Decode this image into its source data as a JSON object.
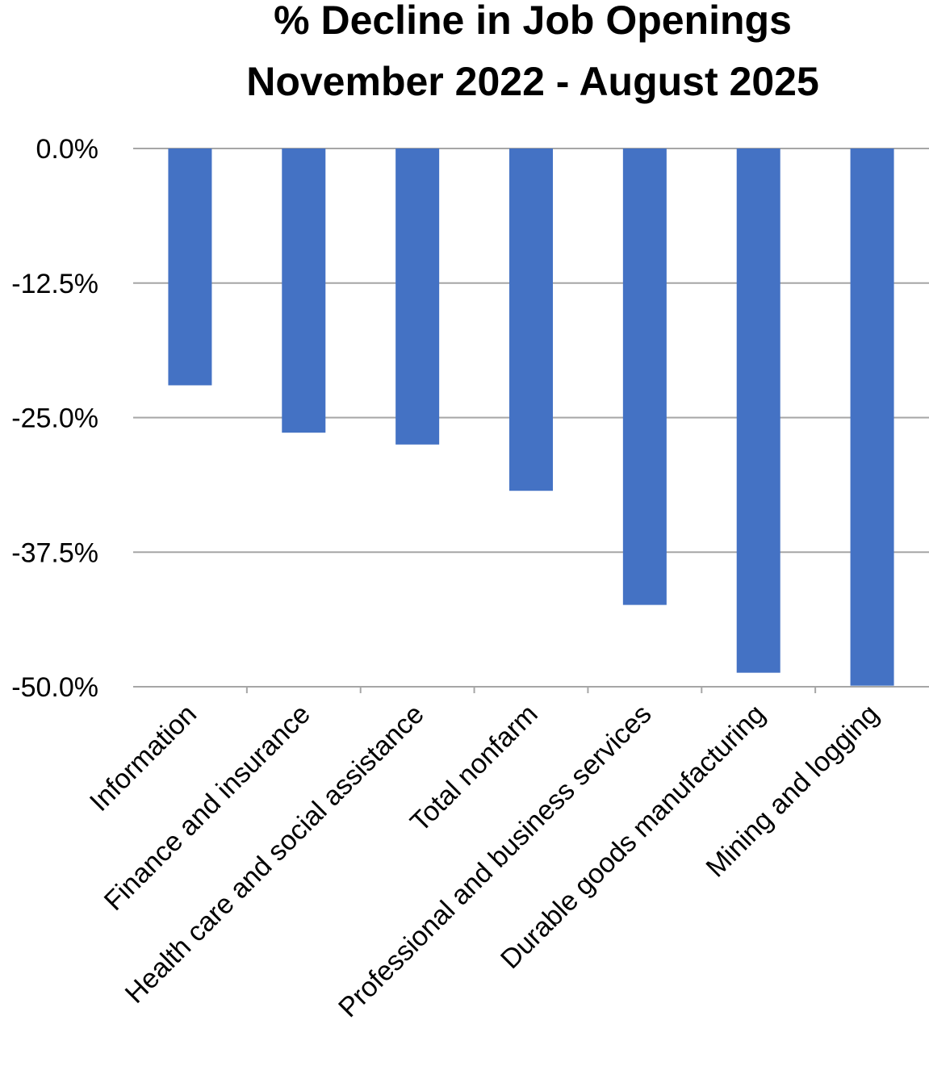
{
  "chart_data": {
    "type": "bar",
    "title": [
      "% Decline in Job Openings",
      "November 2022 - August 2025"
    ],
    "xlabel": "",
    "ylabel": "",
    "categories": [
      "Information",
      "Finance and insurance",
      "Health care and social assistance",
      "Total nonfarm",
      "Professional and business services",
      "Durable goods manufacturing",
      "Mining and logging"
    ],
    "values": [
      -22.0,
      -26.4,
      -27.5,
      -31.8,
      -42.4,
      -48.7,
      -49.9
    ],
    "ylim": [
      -50,
      0
    ],
    "yticks": [
      0,
      -12.5,
      -25,
      -37.5,
      -50
    ],
    "ytick_labels": [
      "0.0%",
      "-12.5%",
      "-25.0%",
      "-37.5%",
      "-50.0%"
    ],
    "grid": true,
    "legend": "none",
    "colors": {
      "bar": "#4472C4",
      "grid": "#A6A6A6"
    }
  }
}
